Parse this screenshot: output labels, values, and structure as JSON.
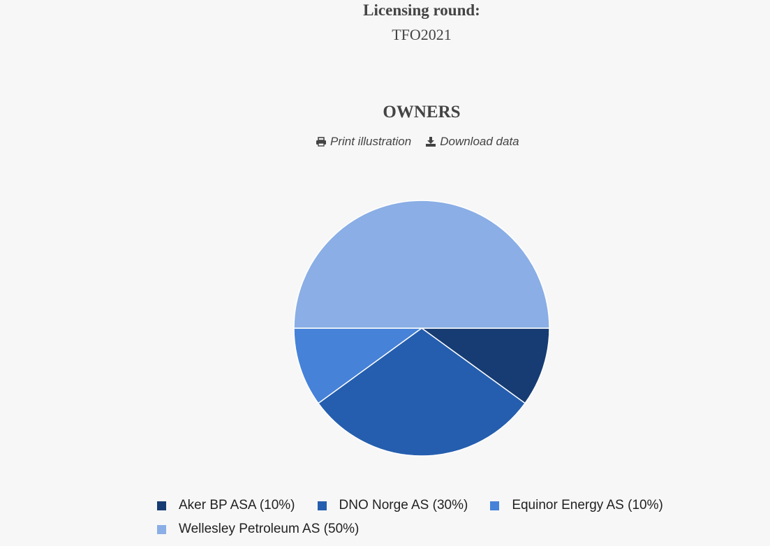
{
  "header": {
    "label": "Licensing round:",
    "value": "TFO2021"
  },
  "actions": {
    "print": "Print illustration",
    "download": "Download data"
  },
  "chart_data": {
    "type": "pie",
    "title": "OWNERS",
    "categories": [
      "Aker BP ASA (10%)",
      "DNO Norge AS (30%)",
      "Equinor Energy AS (10%)",
      "Wellesley Petroleum AS (50%)"
    ],
    "values": [
      10,
      30,
      10,
      50
    ],
    "colors": [
      "#173c73",
      "#255eae",
      "#4682d8",
      "#8aaee5"
    ]
  }
}
